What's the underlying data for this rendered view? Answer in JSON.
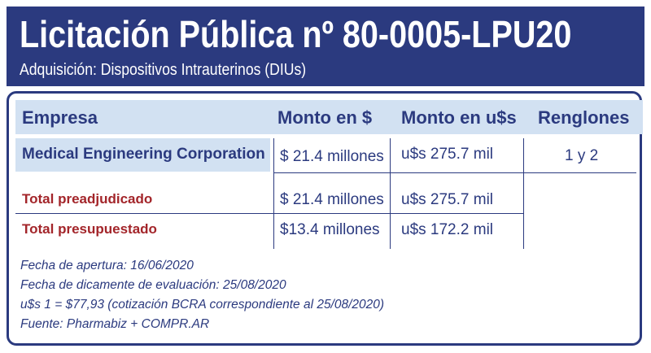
{
  "header": {
    "title": "Licitación Pública nº 80-0005-LPU20",
    "subtitle": "Adquisición: Dispositivos Intrauterinos (DIUs)"
  },
  "table": {
    "columns": [
      "Empresa",
      "Monto en $",
      "Monto en u$s",
      "Renglones"
    ],
    "company_row": {
      "empresa": "Medical Engineering Corporation",
      "monto_pesos": "$ 21.4 millones",
      "monto_usd": "u$s 275.7 mil",
      "renglones": "1 y 2"
    },
    "totals": [
      {
        "label": "Total preadjudicado",
        "monto_pesos": "$ 21.4 millones",
        "monto_usd": "u$s 275.7 mil"
      },
      {
        "label": "Total presupuestado",
        "monto_pesos": "$13.4 millones",
        "monto_usd": "u$s 172.2 mil"
      }
    ]
  },
  "notes": [
    "Fecha de apertura: 16/06/2020",
    "Fecha de dicamente de evaluación: 25/08/2020",
    "u$s 1 = $77,93 (cotización BCRA correspondiente al 25/08/2020)",
    "Fuente: Pharmabiz + COMPR.AR"
  ],
  "colors": {
    "navy": "#2b3a7f",
    "light_blue": "#d2e1f2",
    "total_red": "#a3252a"
  }
}
